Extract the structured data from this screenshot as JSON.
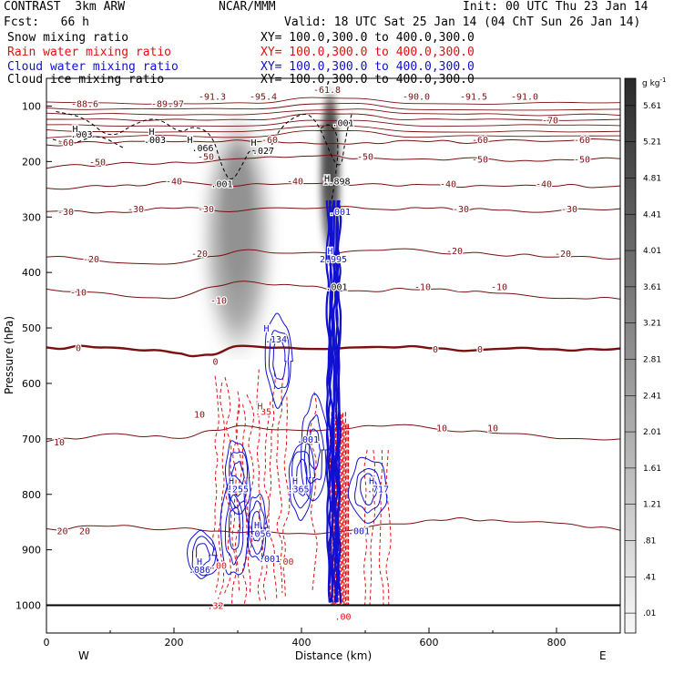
{
  "header": {
    "model": "CONTRAST  3km ARW",
    "center": "NCAR/MMM",
    "init": "Init: 00 UTC Thu 23 Jan 14",
    "fcst": "Fcst:   66 h",
    "valid": "Valid: 18 UTC Sat 25 Jan 14 (04 ChT Sun 26 Jan 14)"
  },
  "fields": [
    {
      "label": "Snow mixing ratio",
      "xy": "XY= 100.0,300.0 to 400.0,300.0",
      "color": "#000000"
    },
    {
      "label": "Rain water mixing ratio",
      "xy": "XY= 100.0,300.0 to 400.0,300.0",
      "color": "#e01010"
    },
    {
      "label": "Cloud water mixing ratio",
      "xy": "XY= 100.0,300.0 to 400.0,300.0",
      "color": "#1010d0"
    },
    {
      "label": "Cloud ice mixing ratio",
      "xy": "XY= 100.0,300.0 to 400.0,300.0",
      "color": "#000000"
    }
  ],
  "chart_data": {
    "type": "cross-section contour",
    "xlabel": "Distance (km)",
    "ylabel": "Pressure (hPa)",
    "xlim": [
      0,
      900
    ],
    "ylim": [
      1050,
      50
    ],
    "x_ticks": [
      "0",
      "200",
      "400",
      "600",
      "800"
    ],
    "y_ticks": [
      "100",
      "200",
      "300",
      "400",
      "500",
      "600",
      "700",
      "800",
      "900",
      "1000"
    ],
    "x_end_labels": {
      "left": "W",
      "right": "E"
    },
    "colorbar": {
      "unit": "g kg",
      "unit_exponent": "-1",
      "ticks": [
        ".01",
        ".41",
        ".81",
        "1.21",
        "1.61",
        "2.01",
        "2.41",
        "2.81",
        "3.21",
        "3.61",
        "4.01",
        "4.41",
        "4.81",
        "5.21",
        "5.61"
      ],
      "cmap": [
        "#f7f7f7",
        "#333333"
      ]
    },
    "temperature_contours": [
      {
        "value": "0",
        "levels": [
          [
            0,
            535
          ],
          [
            100,
            535
          ],
          [
            200,
            545
          ],
          [
            250,
            548
          ],
          [
            300,
            532
          ],
          [
            400,
            538
          ],
          [
            500,
            535
          ],
          [
            600,
            537
          ],
          [
            700,
            538
          ],
          [
            800,
            538
          ],
          [
            900,
            537
          ]
        ],
        "bold": true
      },
      {
        "value": "-10",
        "levels": [
          [
            0,
            430
          ],
          [
            100,
            438
          ],
          [
            200,
            448
          ],
          [
            300,
            415
          ],
          [
            400,
            425
          ],
          [
            500,
            433
          ],
          [
            600,
            430
          ],
          [
            700,
            438
          ],
          [
            800,
            447
          ],
          [
            900,
            448
          ]
        ]
      },
      {
        "value": "-20",
        "levels": [
          [
            0,
            372
          ],
          [
            100,
            382
          ],
          [
            200,
            385
          ],
          [
            300,
            360
          ],
          [
            400,
            365
          ],
          [
            500,
            360
          ],
          [
            600,
            362
          ],
          [
            700,
            368
          ],
          [
            800,
            372
          ],
          [
            900,
            375
          ]
        ]
      },
      {
        "value": "-30",
        "levels": [
          [
            0,
            290
          ],
          [
            100,
            290
          ],
          [
            200,
            285
          ],
          [
            300,
            290
          ],
          [
            400,
            285
          ],
          [
            500,
            285
          ],
          [
            600,
            285
          ],
          [
            700,
            288
          ],
          [
            800,
            289
          ],
          [
            900,
            285
          ]
        ]
      },
      {
        "value": "-40",
        "levels": [
          [
            0,
            248
          ],
          [
            100,
            246
          ],
          [
            200,
            235
          ],
          [
            300,
            245
          ],
          [
            400,
            240
          ],
          [
            500,
            240
          ],
          [
            600,
            242
          ],
          [
            700,
            244
          ],
          [
            800,
            245
          ],
          [
            900,
            244
          ]
        ]
      },
      {
        "value": "-50",
        "levels": [
          [
            0,
            212
          ],
          [
            100,
            205
          ],
          [
            200,
            200
          ],
          [
            300,
            195
          ],
          [
            400,
            190
          ],
          [
            500,
            193
          ],
          [
            600,
            195
          ],
          [
            700,
            196
          ],
          [
            800,
            196
          ],
          [
            900,
            195
          ]
        ]
      },
      {
        "value": "-60",
        "levels": [
          [
            0,
            170
          ],
          [
            100,
            168
          ],
          [
            200,
            165
          ],
          [
            300,
            160
          ],
          [
            400,
            165
          ],
          [
            500,
            165
          ],
          [
            600,
            165
          ],
          [
            700,
            163
          ],
          [
            800,
            163
          ],
          [
            900,
            162
          ]
        ]
      },
      {
        "value": "10",
        "levels": [
          [
            0,
            705
          ],
          [
            100,
            690
          ],
          [
            200,
            700
          ],
          [
            300,
            675
          ],
          [
            400,
            685
          ],
          [
            500,
            675
          ],
          [
            600,
            680
          ],
          [
            700,
            690
          ],
          [
            800,
            700
          ],
          [
            900,
            700
          ]
        ]
      },
      {
        "value": "20",
        "levels": [
          [
            0,
            862
          ],
          [
            100,
            858
          ],
          [
            200,
            862
          ],
          [
            300,
            870
          ],
          [
            400,
            870
          ],
          [
            500,
            860
          ],
          [
            600,
            845
          ],
          [
            700,
            845
          ],
          [
            800,
            852
          ],
          [
            900,
            865
          ]
        ]
      }
    ],
    "contour_value_labels": [
      {
        "text": "-88.6",
        "x": 60,
        "p": 95,
        "color": "#7a1010"
      },
      {
        "text": "-89.97",
        "x": 190,
        "p": 95,
        "color": "#7a1010"
      },
      {
        "text": "-91.3",
        "x": 260,
        "p": 82,
        "color": "#7a1010"
      },
      {
        "text": "-95.4",
        "x": 340,
        "p": 82,
        "color": "#7a1010"
      },
      {
        "text": "-61.8",
        "x": 440,
        "p": 70,
        "color": "#7a1010"
      },
      {
        "text": "-90.0",
        "x": 580,
        "p": 82,
        "color": "#7a1010"
      },
      {
        "text": "-91.5",
        "x": 670,
        "p": 82,
        "color": "#7a1010"
      },
      {
        "text": "-91.0",
        "x": 750,
        "p": 82,
        "color": "#7a1010"
      },
      {
        "text": "-70",
        "x": 790,
        "p": 125,
        "color": "#7a1010"
      },
      {
        "text": "-60",
        "x": 30,
        "p": 165,
        "color": "#7a1010"
      },
      {
        "text": "-60",
        "x": 350,
        "p": 160,
        "color": "#7a1010"
      },
      {
        "text": "-60",
        "x": 680,
        "p": 160,
        "color": "#7a1010"
      },
      {
        "text": "-60",
        "x": 840,
        "p": 160,
        "color": "#7a1010"
      },
      {
        "text": "-50",
        "x": 80,
        "p": 200,
        "color": "#7a1010"
      },
      {
        "text": "-50",
        "x": 250,
        "p": 190,
        "color": "#7a1010"
      },
      {
        "text": "-50",
        "x": 500,
        "p": 190,
        "color": "#7a1010"
      },
      {
        "text": "-50",
        "x": 680,
        "p": 195,
        "color": "#7a1010"
      },
      {
        "text": "-50",
        "x": 840,
        "p": 195,
        "color": "#7a1010"
      },
      {
        "text": "-40",
        "x": 200,
        "p": 235,
        "color": "#7a1010"
      },
      {
        "text": "-40",
        "x": 390,
        "p": 235,
        "color": "#7a1010"
      },
      {
        "text": "-40",
        "x": 630,
        "p": 240,
        "color": "#7a1010"
      },
      {
        "text": "-40",
        "x": 780,
        "p": 240,
        "color": "#7a1010"
      },
      {
        "text": "-30",
        "x": 30,
        "p": 290,
        "color": "#7a1010"
      },
      {
        "text": "-30",
        "x": 140,
        "p": 285,
        "color": "#7a1010"
      },
      {
        "text": "-30",
        "x": 250,
        "p": 285,
        "color": "#7a1010"
      },
      {
        "text": "-30",
        "x": 650,
        "p": 285,
        "color": "#7a1010"
      },
      {
        "text": "-30",
        "x": 820,
        "p": 285,
        "color": "#7a1010"
      },
      {
        "text": "-20",
        "x": 70,
        "p": 375,
        "color": "#7a1010"
      },
      {
        "text": "-20",
        "x": 240,
        "p": 365,
        "color": "#7a1010"
      },
      {
        "text": "-20",
        "x": 640,
        "p": 360,
        "color": "#7a1010"
      },
      {
        "text": "-20",
        "x": 810,
        "p": 365,
        "color": "#7a1010"
      },
      {
        "text": "-10",
        "x": 50,
        "p": 435,
        "color": "#7a1010"
      },
      {
        "text": "-10",
        "x": 270,
        "p": 450,
        "color": "#7a1010"
      },
      {
        "text": "-10",
        "x": 590,
        "p": 425,
        "color": "#7a1010"
      },
      {
        "text": "-10",
        "x": 710,
        "p": 425,
        "color": "#7a1010"
      },
      {
        "text": "0",
        "x": 50,
        "p": 535,
        "color": "#7a1010"
      },
      {
        "text": "0",
        "x": 265,
        "p": 560,
        "color": "#7a1010"
      },
      {
        "text": "0",
        "x": 610,
        "p": 538,
        "color": "#7a1010"
      },
      {
        "text": "0",
        "x": 680,
        "p": 538,
        "color": "#7a1010"
      },
      {
        "text": "10",
        "x": 20,
        "p": 705,
        "color": "#7a1010"
      },
      {
        "text": "10",
        "x": 240,
        "p": 655,
        "color": "#7a1010"
      },
      {
        "text": "10",
        "x": 620,
        "p": 680,
        "color": "#7a1010"
      },
      {
        "text": "10",
        "x": 700,
        "p": 680,
        "color": "#7a1010"
      },
      {
        "text": "20",
        "x": 25,
        "p": 865,
        "color": "#7a1010"
      },
      {
        "text": "20",
        "x": 60,
        "p": 865,
        "color": "#7a1010"
      },
      {
        "text": ".003",
        "x": 55,
        "p": 150,
        "color": "#000000"
      },
      {
        "text": ".003",
        "x": 170,
        "p": 160,
        "color": "#000000"
      },
      {
        "text": ".066",
        "x": 245,
        "p": 175,
        "color": "#000000"
      },
      {
        "text": ".027",
        "x": 340,
        "p": 180,
        "color": "#000000"
      },
      {
        "text": ".001",
        "x": 275,
        "p": 240,
        "color": "#000000"
      },
      {
        "text": ".001",
        "x": 465,
        "p": 130,
        "color": "#000000"
      },
      {
        "text": "1.898",
        "x": 455,
        "p": 235,
        "color": "#000000"
      },
      {
        "text": ".001",
        "x": 455,
        "p": 425,
        "color": "#000000"
      },
      {
        "text": ".001",
        "x": 460,
        "p": 290,
        "color": "#1010d0"
      },
      {
        "text": "2.995",
        "x": 450,
        "p": 375,
        "color": "#1010d0"
      },
      {
        "text": ".134",
        "x": 360,
        "p": 520,
        "color": "#1010d0"
      },
      {
        "text": ".001",
        "x": 410,
        "p": 700,
        "color": "#1010d0"
      },
      {
        "text": ".255",
        "x": 300,
        "p": 790,
        "color": "#1010d0"
      },
      {
        "text": ".365",
        "x": 395,
        "p": 790,
        "color": "#1010d0"
      },
      {
        "text": ".717",
        "x": 520,
        "p": 790,
        "color": "#1010d0"
      },
      {
        "text": ".056",
        "x": 335,
        "p": 870,
        "color": "#1010d0"
      },
      {
        "text": ".001",
        "x": 350,
        "p": 915,
        "color": "#1010d0"
      },
      {
        "text": ".001",
        "x": 490,
        "p": 865,
        "color": "#1010d0"
      },
      {
        "text": ".086",
        "x": 240,
        "p": 935,
        "color": "#1010d0"
      },
      {
        "text": ".35",
        "x": 340,
        "p": 650,
        "color": "#e01010"
      },
      {
        "text": ".00",
        "x": 270,
        "p": 928,
        "color": "#e01010"
      },
      {
        "text": ".32",
        "x": 265,
        "p": 1000,
        "color": "#e01010"
      },
      {
        "text": ".00",
        "x": 375,
        "p": 920,
        "color": "#e01010"
      },
      {
        "text": ".00",
        "x": 465,
        "p": 1020,
        "color": "#e01010"
      }
    ],
    "h_markers": [
      {
        "x": 45,
        "p": 140,
        "color": "#000000"
      },
      {
        "x": 165,
        "p": 145,
        "color": "#000000"
      },
      {
        "x": 225,
        "p": 160,
        "color": "#000000"
      },
      {
        "x": 325,
        "p": 165,
        "color": "#000000"
      },
      {
        "x": 440,
        "p": 230,
        "color": "#000000"
      },
      {
        "x": 445,
        "p": 360,
        "color": "#1010d0"
      },
      {
        "x": 345,
        "p": 500,
        "color": "#1010d0"
      },
      {
        "x": 335,
        "p": 640,
        "color": "#e01010"
      },
      {
        "x": 290,
        "p": 775,
        "color": "#1010d0"
      },
      {
        "x": 390,
        "p": 775,
        "color": "#1010d0"
      },
      {
        "x": 510,
        "p": 775,
        "color": "#1010d0"
      },
      {
        "x": 330,
        "p": 855,
        "color": "#1010d0"
      },
      {
        "x": 240,
        "p": 920,
        "color": "#1010d0"
      }
    ],
    "snow_plumes": [
      {
        "x_center": 300,
        "x_width": 90,
        "p_top": 150,
        "p_bottom": 520,
        "max_value": 3.0
      },
      {
        "x_center": 445,
        "x_width": 30,
        "p_top": 80,
        "p_bottom": 360,
        "max_value": 5.5
      }
    ],
    "cloud_ice_outline": [
      {
        "x_center": 420,
        "p_top": 120,
        "p_bottom": 250,
        "value": ".001"
      },
      {
        "x_center": 170,
        "p_top": 120,
        "p_bottom": 180,
        "value": ".003"
      }
    ]
  }
}
